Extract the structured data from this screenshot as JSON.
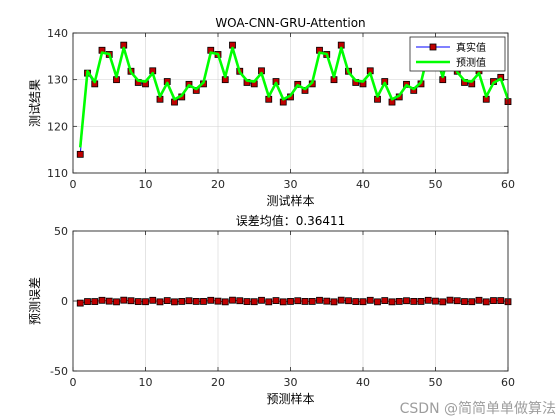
{
  "watermark": "CSDN @简简单单做算法",
  "colors": {
    "background": "#ffffff",
    "axes_box": "#262626",
    "grid": "#d9d9d9",
    "true_line": "#0000ff",
    "true_marker_face": "#c00000",
    "true_marker_edge": "#000000",
    "pred_line": "#00ff00",
    "error_line": "#ff0000",
    "error_marker_face": "#c00000"
  },
  "chart_data": [
    {
      "type": "line",
      "title": "WOA-CNN-GRU-Attention",
      "xlabel": "测试样本",
      "ylabel": "测试结果",
      "xlim": [
        0,
        60
      ],
      "ylim": [
        110,
        140
      ],
      "xticks": [
        0,
        10,
        20,
        30,
        40,
        50,
        60
      ],
      "yticks": [
        110,
        120,
        130,
        140
      ],
      "grid": true,
      "legend": {
        "position": "top-right",
        "entries": [
          "真实值",
          "预测值"
        ]
      },
      "x": [
        1,
        2,
        3,
        4,
        5,
        6,
        7,
        8,
        9,
        10,
        11,
        12,
        13,
        14,
        15,
        16,
        17,
        18,
        19,
        20,
        21,
        22,
        23,
        24,
        25,
        26,
        27,
        28,
        29,
        30,
        31,
        32,
        33,
        34,
        35,
        36,
        37,
        38,
        39,
        40,
        41,
        42,
        43,
        44,
        45,
        46,
        47,
        48,
        49,
        50,
        51,
        52,
        53,
        54,
        55,
        56,
        57,
        58,
        59,
        60
      ],
      "series": [
        {
          "name": "真实值",
          "style": "line-with-square-markers",
          "values": [
            114.0,
            131.4,
            129.1,
            136.3,
            135.4,
            130.0,
            137.4,
            131.8,
            129.4,
            129.1,
            131.9,
            125.8,
            129.6,
            125.2,
            126.3,
            129.0,
            127.7,
            129.1,
            136.3,
            135.4,
            130.0,
            137.4,
            131.8,
            129.4,
            129.1,
            131.9,
            125.8,
            129.6,
            125.2,
            126.3,
            129.0,
            127.7,
            129.1,
            136.3,
            135.4,
            130.0,
            137.4,
            131.8,
            129.4,
            129.1,
            131.9,
            125.8,
            129.6,
            125.2,
            126.3,
            129.0,
            127.7,
            129.1,
            136.3,
            135.4,
            130.0,
            137.4,
            131.8,
            129.4,
            129.1,
            131.9,
            125.8,
            129.6,
            130.5,
            125.3
          ]
        },
        {
          "name": "预测值",
          "style": "thick-line",
          "values": [
            115.5,
            131.8,
            129.5,
            135.8,
            135.5,
            130.6,
            136.8,
            131.6,
            129.8,
            129.6,
            131.4,
            126.4,
            129.3,
            125.8,
            126.6,
            128.8,
            128.0,
            129.4,
            135.8,
            135.5,
            130.6,
            136.8,
            131.6,
            129.8,
            129.6,
            131.4,
            126.4,
            129.3,
            125.8,
            126.6,
            128.8,
            128.0,
            129.4,
            135.8,
            135.5,
            130.6,
            136.8,
            131.6,
            129.8,
            129.6,
            131.4,
            126.4,
            129.3,
            125.8,
            126.6,
            128.8,
            128.0,
            129.4,
            135.8,
            135.5,
            130.6,
            136.8,
            131.6,
            129.8,
            129.6,
            131.4,
            126.4,
            129.3,
            130.2,
            125.8
          ]
        }
      ]
    },
    {
      "type": "line",
      "title": "误差均值：0.36411",
      "xlabel": "预测样本",
      "ylabel": "预测误差",
      "xlim": [
        0,
        60
      ],
      "ylim": [
        -50,
        50
      ],
      "xticks": [
        0,
        10,
        20,
        30,
        40,
        50,
        60
      ],
      "yticks": [
        -50,
        0,
        50
      ],
      "grid": true,
      "x": [
        1,
        2,
        3,
        4,
        5,
        6,
        7,
        8,
        9,
        10,
        11,
        12,
        13,
        14,
        15,
        16,
        17,
        18,
        19,
        20,
        21,
        22,
        23,
        24,
        25,
        26,
        27,
        28,
        29,
        30,
        31,
        32,
        33,
        34,
        35,
        36,
        37,
        38,
        39,
        40,
        41,
        42,
        43,
        44,
        45,
        46,
        47,
        48,
        49,
        50,
        51,
        52,
        53,
        54,
        55,
        56,
        57,
        58,
        59,
        60
      ],
      "series": [
        {
          "style": "line-with-square-markers",
          "values": [
            -1.5,
            -0.4,
            -0.4,
            0.5,
            -0.1,
            -0.6,
            0.6,
            0.2,
            -0.4,
            -0.5,
            0.5,
            -0.6,
            0.3,
            -0.6,
            -0.3,
            0.2,
            -0.3,
            -0.3,
            0.5,
            -0.1,
            -0.6,
            0.6,
            0.2,
            -0.4,
            -0.5,
            0.5,
            -0.6,
            0.3,
            -0.6,
            -0.3,
            0.2,
            -0.3,
            -0.3,
            0.5,
            -0.1,
            -0.6,
            0.6,
            0.2,
            -0.4,
            -0.5,
            0.5,
            -0.6,
            0.3,
            -0.6,
            -0.3,
            0.2,
            -0.3,
            -0.3,
            0.5,
            -0.1,
            -0.6,
            0.6,
            0.2,
            -0.4,
            -0.5,
            0.5,
            -0.6,
            0.3,
            0.3,
            -0.5
          ]
        }
      ]
    }
  ]
}
